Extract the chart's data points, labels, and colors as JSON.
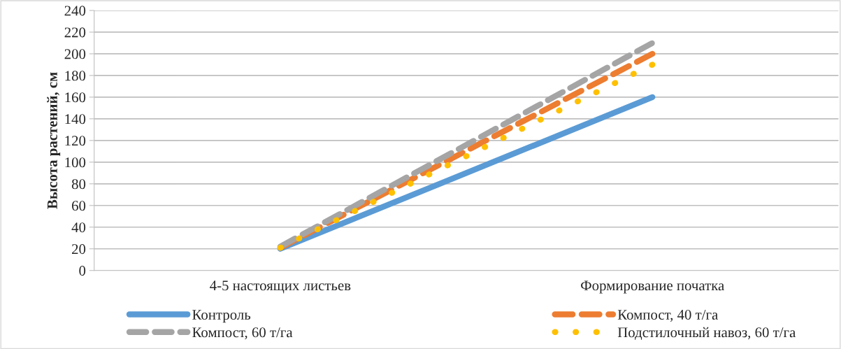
{
  "chart_data": {
    "type": "line",
    "ylabel": "Высота растений, см",
    "categories": [
      "4-5 настоящих листьев",
      "Формирование початка"
    ],
    "series": [
      {
        "name": "Контроль",
        "color": "#5b9bd5",
        "values": [
          20,
          160
        ],
        "line_style": "solid"
      },
      {
        "name": "Компост, 40 т/га",
        "color": "#ed7d31",
        "values": [
          21,
          200
        ],
        "line_style": "dashed"
      },
      {
        "name": "Компост, 60 т/га",
        "color": "#a5a5a5",
        "values": [
          22,
          210
        ],
        "line_style": "dashed"
      },
      {
        "name": "Подстилочный навоз, 60 т/га",
        "color": "#ffc000",
        "values": [
          21,
          190
        ],
        "line_style": "dotted"
      }
    ],
    "ylim": [
      0,
      240
    ],
    "yticks": [
      0,
      20,
      40,
      60,
      80,
      100,
      120,
      140,
      160,
      180,
      200,
      220,
      240
    ],
    "grid": "y",
    "legend": "bottom"
  }
}
